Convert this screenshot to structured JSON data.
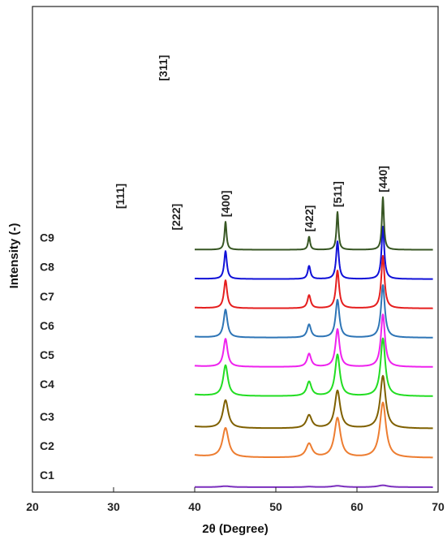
{
  "chart_data": {
    "type": "line",
    "title": "",
    "xlabel": "2θ (Degree)",
    "ylabel": "Intensity (-)",
    "xlim": [
      20,
      70
    ],
    "xticks": [
      20,
      30,
      40,
      50,
      60,
      70
    ],
    "yticks_shown": false,
    "grid": false,
    "legend": "none",
    "series": [
      {
        "name": "C1",
        "color": "#7B2FBE",
        "offset": 0,
        "scale": 0.45,
        "width": 0.75
      },
      {
        "name": "C2",
        "color": "#ED7D31",
        "offset": 1,
        "scale": 1.05,
        "width": 0.45
      },
      {
        "name": "C3",
        "color": "#7F6000",
        "offset": 2,
        "scale": 1.0,
        "width": 0.4
      },
      {
        "name": "C4",
        "color": "#22DD22",
        "offset": 3.1,
        "scale": 1.1,
        "width": 0.35
      },
      {
        "name": "C5",
        "color": "#EE22EE",
        "offset": 4.1,
        "scale": 1.0,
        "width": 0.3
      },
      {
        "name": "C6",
        "color": "#2E75B6",
        "offset": 5.1,
        "scale": 1.0,
        "width": 0.28
      },
      {
        "name": "C7",
        "color": "#E51E1E",
        "offset": 6.1,
        "scale": 1.0,
        "width": 0.24
      },
      {
        "name": "C8",
        "color": "#1010D8",
        "offset": 7.1,
        "scale": 1.0,
        "width": 0.2
      },
      {
        "name": "C9",
        "color": "#375623",
        "offset": 8.1,
        "scale": 1.0,
        "width": 0.15
      }
    ],
    "peaks": [
      {
        "label": "[111]",
        "x": 30.8,
        "rel": 0.22
      },
      {
        "label": "[311]",
        "x": 36.1,
        "rel": 1.0
      },
      {
        "label": "[222]",
        "x": 37.7,
        "rel": 0.05
      },
      {
        "label": "[400]",
        "x": 43.8,
        "rel": 0.17
      },
      {
        "label": "[422]",
        "x": 54.1,
        "rel": 0.08
      },
      {
        "label": "[511]",
        "x": 57.6,
        "rel": 0.23
      },
      {
        "label": "[440]",
        "x": 63.2,
        "rel": 0.32
      }
    ],
    "peak_label_series": "C9"
  }
}
